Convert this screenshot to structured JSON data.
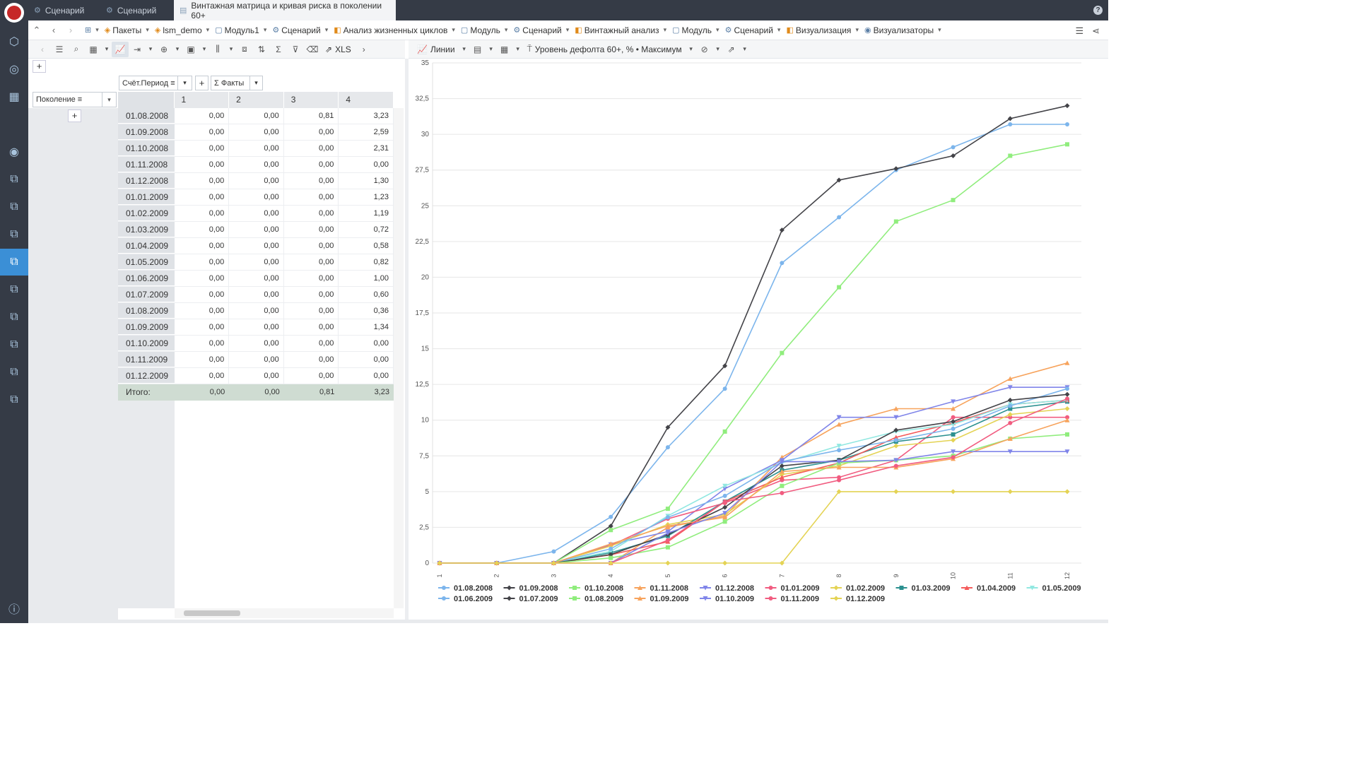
{
  "tabs": [
    {
      "label": "Сценарий",
      "icon": "scenario-icon"
    },
    {
      "label": "Сценарий",
      "icon": "scenario-icon"
    },
    {
      "label": "Винтажная матрица и кривая риска в поколении 60+",
      "icon": "report-icon",
      "active": true
    }
  ],
  "breadcrumbs": [
    "Пакеты",
    "lsm_demo",
    "Модуль1",
    "Сценарий",
    "Анализ жизненных циклов",
    "Модуль",
    "Сценарий",
    "Винтажный анализ",
    "Модуль",
    "Сценарий",
    "Визуализация",
    "Визуализаторы"
  ],
  "left_toolbar": {
    "export_label": "XLS"
  },
  "right_toolbar": {
    "chart_type_label": "Линии",
    "fact_label": "Уровень дефолта 60+, % • Максимум"
  },
  "pivot": {
    "column_dim": "Счёт.Период",
    "facts_label": "Факты",
    "row_dim": "Поколение",
    "columns": [
      "1",
      "2",
      "3",
      "4"
    ],
    "rows": [
      {
        "label": "01.08.2008",
        "values": [
          "0,00",
          "0,00",
          "0,81",
          "3,23"
        ]
      },
      {
        "label": "01.09.2008",
        "values": [
          "0,00",
          "0,00",
          "0,00",
          "2,59"
        ]
      },
      {
        "label": "01.10.2008",
        "values": [
          "0,00",
          "0,00",
          "0,00",
          "2,31"
        ]
      },
      {
        "label": "01.11.2008",
        "values": [
          "0,00",
          "0,00",
          "0,00",
          "0,00"
        ]
      },
      {
        "label": "01.12.2008",
        "values": [
          "0,00",
          "0,00",
          "0,00",
          "1,30"
        ]
      },
      {
        "label": "01.01.2009",
        "values": [
          "0,00",
          "0,00",
          "0,00",
          "1,23"
        ]
      },
      {
        "label": "01.02.2009",
        "values": [
          "0,00",
          "0,00",
          "0,00",
          "1,19"
        ]
      },
      {
        "label": "01.03.2009",
        "values": [
          "0,00",
          "0,00",
          "0,00",
          "0,72"
        ]
      },
      {
        "label": "01.04.2009",
        "values": [
          "0,00",
          "0,00",
          "0,00",
          "0,58"
        ]
      },
      {
        "label": "01.05.2009",
        "values": [
          "0,00",
          "0,00",
          "0,00",
          "0,82"
        ]
      },
      {
        "label": "01.06.2009",
        "values": [
          "0,00",
          "0,00",
          "0,00",
          "1,00"
        ]
      },
      {
        "label": "01.07.2009",
        "values": [
          "0,00",
          "0,00",
          "0,00",
          "0,60"
        ]
      },
      {
        "label": "01.08.2009",
        "values": [
          "0,00",
          "0,00",
          "0,00",
          "0,36"
        ]
      },
      {
        "label": "01.09.2009",
        "values": [
          "0,00",
          "0,00",
          "0,00",
          "1,34"
        ]
      },
      {
        "label": "01.10.2009",
        "values": [
          "0,00",
          "0,00",
          "0,00",
          "0,00"
        ]
      },
      {
        "label": "01.11.2009",
        "values": [
          "0,00",
          "0,00",
          "0,00",
          "0,00"
        ]
      },
      {
        "label": "01.12.2009",
        "values": [
          "0,00",
          "0,00",
          "0,00",
          "0,00"
        ]
      }
    ],
    "total": {
      "label": "Итого:",
      "values": [
        "0,00",
        "0,00",
        "0,81",
        "3,23"
      ]
    }
  },
  "chart_data": {
    "type": "line",
    "x": [
      1,
      2,
      3,
      4,
      5,
      6,
      7,
      8,
      9,
      10,
      11,
      12
    ],
    "yticks": [
      "0",
      "2,5",
      "5",
      "7,5",
      "10",
      "12,5",
      "15",
      "17,5",
      "20",
      "22,5",
      "25",
      "27,5",
      "30",
      "32,5",
      "35"
    ],
    "ylim": [
      0,
      35
    ],
    "grid": true,
    "legend": "bottom",
    "series": [
      {
        "name": "01.08.2008",
        "color": "#7cb5ec",
        "marker": "circle",
        "values": [
          0,
          0,
          0.81,
          3.23,
          8.1,
          12.2,
          21,
          24.2,
          27.5,
          29.1,
          30.7,
          30.7
        ]
      },
      {
        "name": "01.09.2008",
        "color": "#434348",
        "marker": "diamond",
        "values": [
          0,
          0,
          0,
          2.59,
          9.5,
          13.8,
          23.3,
          26.8,
          27.6,
          28.5,
          31.1,
          32
        ]
      },
      {
        "name": "01.10.2008",
        "color": "#90ed7d",
        "marker": "square",
        "values": [
          0,
          0,
          0,
          2.31,
          3.8,
          9.2,
          14.7,
          19.3,
          23.9,
          25.4,
          28.5,
          29.3
        ]
      },
      {
        "name": "01.11.2008",
        "color": "#f7a35c",
        "marker": "triangle",
        "values": [
          0,
          0,
          0,
          0,
          2.5,
          3.3,
          7.4,
          9.7,
          10.8,
          10.8,
          12.9,
          14
        ]
      },
      {
        "name": "01.12.2008",
        "color": "#8085e9",
        "marker": "triangle-down",
        "values": [
          0,
          0,
          0,
          1.3,
          2.2,
          5.2,
          7.2,
          10.2,
          10.2,
          11.3,
          12.3,
          12.3
        ]
      },
      {
        "name": "01.01.2009",
        "color": "#f15c80",
        "marker": "circle",
        "values": [
          0,
          0,
          0,
          1.23,
          3.1,
          4.2,
          5.8,
          6,
          7.2,
          10.2,
          10.2,
          10.2
        ]
      },
      {
        "name": "01.02.2009",
        "color": "#e4d354",
        "marker": "diamond",
        "values": [
          0,
          0,
          0,
          1.19,
          2.7,
          3.4,
          6.2,
          6.8,
          8.2,
          8.6,
          10.4,
          10.8
        ]
      },
      {
        "name": "01.03.2009",
        "color": "#2b908f",
        "marker": "square",
        "values": [
          0,
          0,
          0,
          0.72,
          1.9,
          4.3,
          6.5,
          7.2,
          8.5,
          9,
          10.8,
          11.3
        ]
      },
      {
        "name": "01.04.2009",
        "color": "#f45b5b",
        "marker": "triangle",
        "values": [
          0,
          0,
          0,
          0.58,
          1.5,
          4.3,
          6,
          7,
          8.8,
          9.8,
          11.1,
          11.4
        ]
      },
      {
        "name": "01.05.2009",
        "color": "#91e8e1",
        "marker": "triangle-down",
        "values": [
          0,
          0,
          0,
          0.82,
          3.3,
          5.4,
          7,
          8.2,
          9.2,
          9.7,
          11.1,
          11.4
        ]
      },
      {
        "name": "01.06.2009",
        "color": "#7cb5ec",
        "marker": "circle",
        "values": [
          0,
          0,
          0,
          1,
          3.2,
          4.7,
          7.1,
          7.9,
          8.6,
          9.4,
          11,
          12.2
        ]
      },
      {
        "name": "01.07.2009",
        "color": "#434348",
        "marker": "diamond",
        "values": [
          0,
          0,
          0,
          0.6,
          2,
          3.9,
          6.8,
          7.2,
          9.3,
          9.9,
          11.4,
          11.8
        ]
      },
      {
        "name": "01.08.2009",
        "color": "#90ed7d",
        "marker": "square",
        "values": [
          0,
          0,
          0,
          0.36,
          1.1,
          2.9,
          5.4,
          7,
          7.2,
          7.5,
          8.7,
          9
        ]
      },
      {
        "name": "01.09.2009",
        "color": "#f7a35c",
        "marker": "triangle",
        "values": [
          0,
          0,
          0,
          1.34,
          2.6,
          3.2,
          6.4,
          6.7,
          6.7,
          7.3,
          8.7,
          10
        ]
      },
      {
        "name": "01.10.2009",
        "color": "#8085e9",
        "marker": "triangle-down",
        "values": [
          0,
          0,
          0,
          0,
          2.1,
          3.5,
          7.1,
          7.1,
          7.2,
          7.8,
          7.8,
          7.8
        ]
      },
      {
        "name": "01.11.2009",
        "color": "#f15c80",
        "marker": "circle",
        "values": [
          0,
          0,
          0,
          0,
          1.6,
          4.3,
          4.9,
          5.8,
          6.8,
          7.4,
          9.8,
          11.5
        ]
      },
      {
        "name": "01.12.2009",
        "color": "#e4d354",
        "marker": "diamond",
        "values": [
          0,
          0,
          0,
          0,
          0,
          0,
          0,
          5,
          5,
          5,
          5,
          5
        ]
      }
    ]
  }
}
